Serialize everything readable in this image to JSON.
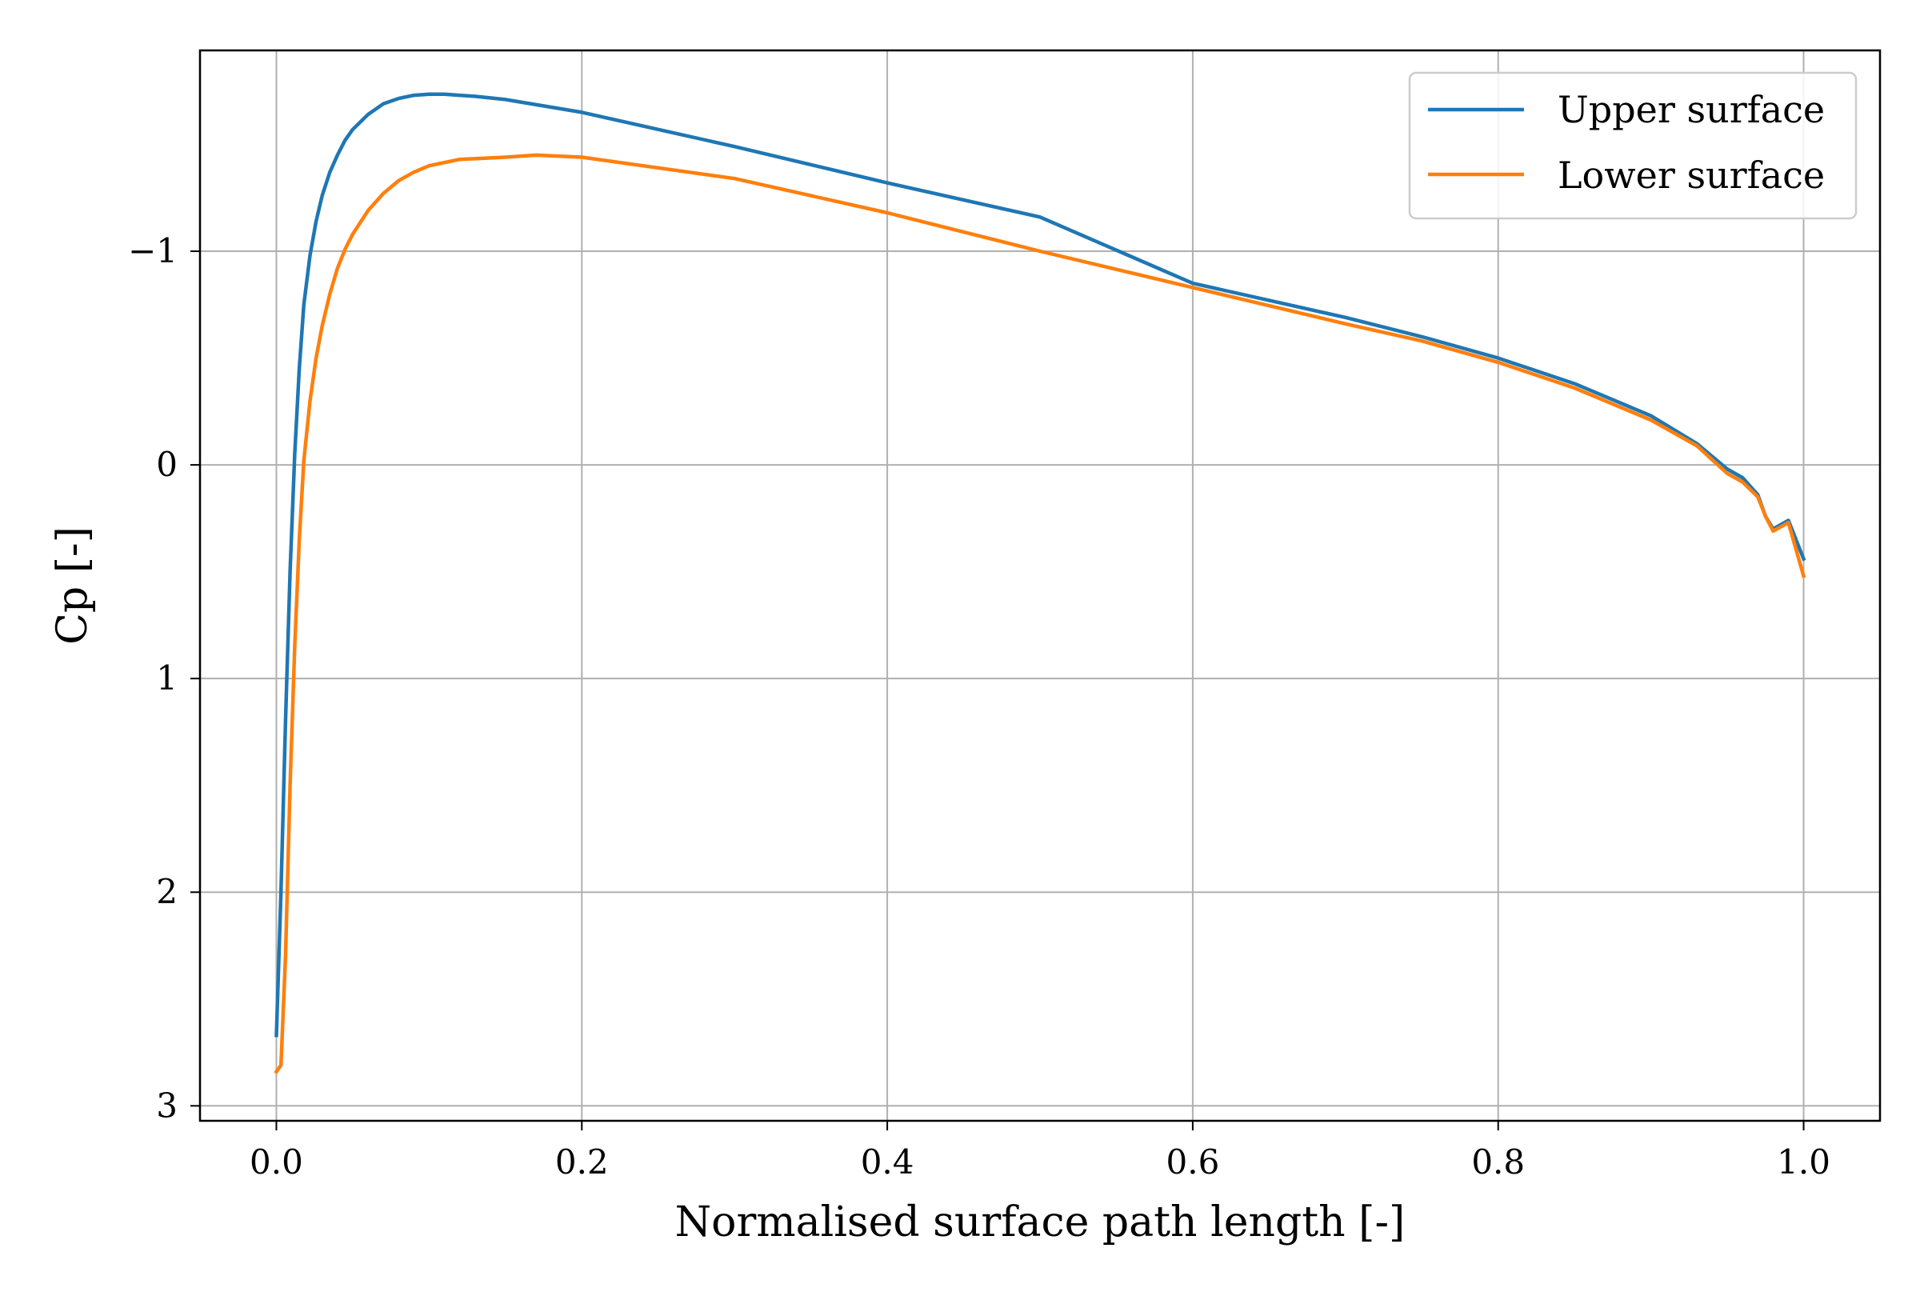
{
  "chart_data": {
    "type": "line",
    "title": "",
    "xlabel": "Normalised surface path length [-]",
    "ylabel": "Cp [-]",
    "xlim": [
      -0.05,
      1.05
    ],
    "ylim": [
      3.07,
      -1.94
    ],
    "y_inverted": true,
    "grid": true,
    "legend_position": "top-right",
    "x_ticks": [
      {
        "value": 0.0,
        "label": "0.0"
      },
      {
        "value": 0.2,
        "label": "0.2"
      },
      {
        "value": 0.4,
        "label": "0.4"
      },
      {
        "value": 0.6,
        "label": "0.6"
      },
      {
        "value": 0.8,
        "label": "0.8"
      },
      {
        "value": 1.0,
        "label": "1.0"
      }
    ],
    "y_ticks": [
      {
        "value": -1,
        "label": "−1"
      },
      {
        "value": 0,
        "label": "0"
      },
      {
        "value": 1,
        "label": "1"
      },
      {
        "value": 2,
        "label": "2"
      },
      {
        "value": 3,
        "label": "3"
      }
    ],
    "series": [
      {
        "name": "Upper surface",
        "color": "#1f77b4",
        "x": [
          0.0,
          0.003,
          0.006,
          0.009,
          0.012,
          0.015,
          0.018,
          0.022,
          0.026,
          0.03,
          0.035,
          0.04,
          0.045,
          0.05,
          0.06,
          0.07,
          0.08,
          0.09,
          0.1,
          0.11,
          0.12,
          0.13,
          0.15,
          0.2,
          0.3,
          0.4,
          0.5,
          0.6,
          0.7,
          0.75,
          0.8,
          0.85,
          0.9,
          0.93,
          0.95,
          0.96,
          0.97,
          0.975,
          0.98,
          0.99,
          1.0
        ],
        "y": [
          2.67,
          2.0,
          1.2,
          0.5,
          -0.05,
          -0.45,
          -0.75,
          -0.98,
          -1.14,
          -1.26,
          -1.37,
          -1.45,
          -1.52,
          -1.57,
          -1.64,
          -1.69,
          -1.715,
          -1.73,
          -1.735,
          -1.735,
          -1.73,
          -1.725,
          -1.71,
          -1.65,
          -1.49,
          -1.32,
          -1.16,
          -0.85,
          -0.69,
          -0.6,
          -0.5,
          -0.38,
          -0.23,
          -0.1,
          0.02,
          0.06,
          0.14,
          0.24,
          0.3,
          0.26,
          0.44
        ]
      },
      {
        "name": "Lower surface",
        "color": "#ff7f0e",
        "x": [
          0.0,
          0.003,
          0.006,
          0.009,
          0.012,
          0.015,
          0.018,
          0.022,
          0.026,
          0.03,
          0.035,
          0.04,
          0.045,
          0.05,
          0.06,
          0.07,
          0.08,
          0.09,
          0.1,
          0.12,
          0.15,
          0.17,
          0.2,
          0.3,
          0.4,
          0.5,
          0.6,
          0.7,
          0.75,
          0.8,
          0.85,
          0.9,
          0.93,
          0.95,
          0.96,
          0.97,
          0.975,
          0.98,
          0.99,
          1.0
        ],
        "y": [
          2.84,
          2.81,
          2.3,
          1.5,
          0.85,
          0.35,
          -0.02,
          -0.3,
          -0.5,
          -0.65,
          -0.8,
          -0.92,
          -1.01,
          -1.08,
          -1.19,
          -1.27,
          -1.33,
          -1.37,
          -1.4,
          -1.43,
          -1.44,
          -1.45,
          -1.44,
          -1.34,
          -1.18,
          -1.0,
          -0.83,
          -0.66,
          -0.58,
          -0.48,
          -0.36,
          -0.21,
          -0.09,
          0.04,
          0.08,
          0.15,
          0.24,
          0.31,
          0.27,
          0.52
        ]
      }
    ]
  }
}
